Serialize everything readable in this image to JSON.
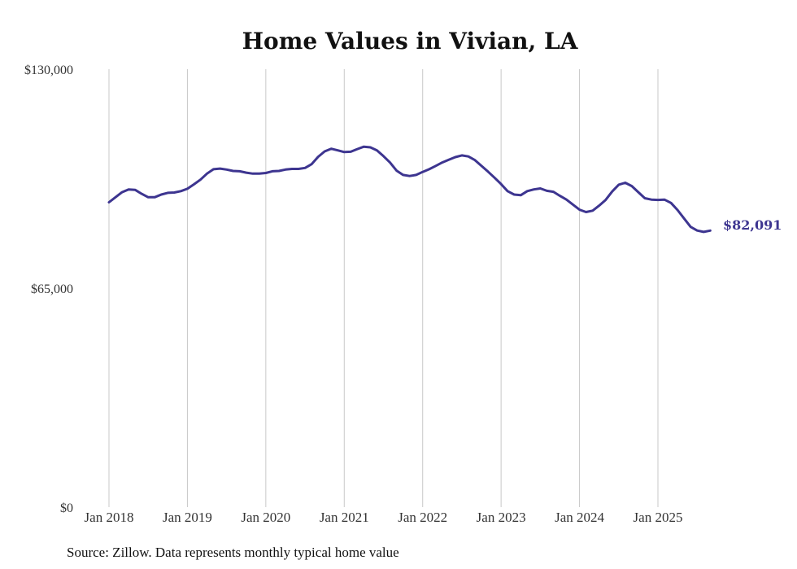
{
  "chart_data": {
    "type": "line",
    "title": "Home Values in Vivian, LA",
    "xlabel": "",
    "ylabel": "",
    "ylim": [
      0,
      130000
    ],
    "y_ticks": [
      {
        "value": 0,
        "label": "$0"
      },
      {
        "value": 65000,
        "label": "$65,000"
      },
      {
        "value": 130000,
        "label": "$130,000"
      }
    ],
    "x_ticks": [
      {
        "value": 2018,
        "label": "Jan 2018"
      },
      {
        "value": 2019,
        "label": "Jan 2019"
      },
      {
        "value": 2020,
        "label": "Jan 2020"
      },
      {
        "value": 2021,
        "label": "Jan 2021"
      },
      {
        "value": 2022,
        "label": "Jan 2022"
      },
      {
        "value": 2023,
        "label": "Jan 2023"
      },
      {
        "value": 2024,
        "label": "Jan 2024"
      },
      {
        "value": 2025,
        "label": "Jan 2025"
      }
    ],
    "xlim": [
      2018,
      2025.67
    ],
    "grid": true,
    "series": [
      {
        "name": "Typical home value",
        "color": "#3d3590",
        "x": [
          2018.0,
          2018.083,
          2018.167,
          2018.25,
          2018.333,
          2018.417,
          2018.5,
          2018.583,
          2018.667,
          2018.75,
          2018.833,
          2018.917,
          2019.0,
          2019.083,
          2019.167,
          2019.25,
          2019.333,
          2019.417,
          2019.5,
          2019.583,
          2019.667,
          2019.75,
          2019.833,
          2019.917,
          2020.0,
          2020.083,
          2020.167,
          2020.25,
          2020.333,
          2020.417,
          2020.5,
          2020.583,
          2020.667,
          2020.75,
          2020.833,
          2020.917,
          2021.0,
          2021.083,
          2021.167,
          2021.25,
          2021.333,
          2021.417,
          2021.5,
          2021.583,
          2021.667,
          2021.75,
          2021.833,
          2021.917,
          2022.0,
          2022.083,
          2022.167,
          2022.25,
          2022.333,
          2022.417,
          2022.5,
          2022.583,
          2022.667,
          2022.75,
          2022.833,
          2022.917,
          2023.0,
          2023.083,
          2023.167,
          2023.25,
          2023.333,
          2023.417,
          2023.5,
          2023.583,
          2023.667,
          2023.75,
          2023.833,
          2023.917,
          2024.0,
          2024.083,
          2024.167,
          2024.25,
          2024.333,
          2024.417,
          2024.5,
          2024.583,
          2024.667,
          2024.75,
          2024.833,
          2024.917,
          2025.0,
          2025.083,
          2025.167,
          2025.25,
          2025.333,
          2025.417,
          2025.5,
          2025.583,
          2025.667
        ],
        "y": [
          90500,
          92000,
          93500,
          94300,
          94200,
          93000,
          92000,
          92000,
          92800,
          93300,
          93400,
          93800,
          94500,
          95800,
          97200,
          99000,
          100300,
          100500,
          100200,
          99800,
          99700,
          99300,
          99000,
          99000,
          99200,
          99700,
          99800,
          100200,
          100400,
          100400,
          100700,
          101800,
          104000,
          105600,
          106400,
          105900,
          105400,
          105500,
          106300,
          107000,
          106800,
          105900,
          104200,
          102300,
          99900,
          98600,
          98300,
          98600,
          99500,
          100300,
          101300,
          102300,
          103100,
          103900,
          104400,
          104100,
          103000,
          101300,
          99600,
          97800,
          95900,
          93800,
          92800,
          92600,
          93800,
          94300,
          94600,
          93900,
          93600,
          92400,
          91300,
          89800,
          88300,
          87600,
          88000,
          89500,
          91200,
          93700,
          95700,
          96300,
          95300,
          93500,
          91700,
          91300,
          91200,
          91300,
          90300,
          88200,
          85700,
          83200,
          82100,
          81700,
          82091
        ]
      }
    ],
    "end_label": {
      "value": 82091,
      "text": "$82,091"
    },
    "source": "Source: Zillow. Data represents monthly typical home value"
  }
}
